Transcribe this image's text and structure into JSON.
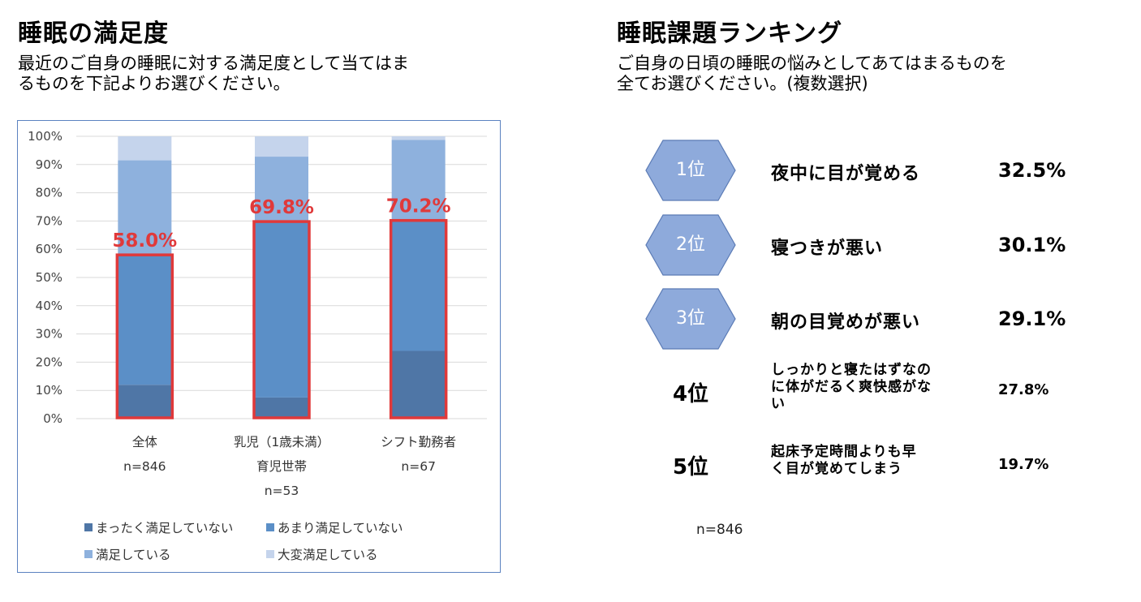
{
  "left": {
    "title": "睡眠の満足度",
    "subtitle": "最近のご自身の睡眠に対する満足度として当てはま\nるものを下記よりお選びください。"
  },
  "right": {
    "title": "睡眠課題ランキング",
    "subtitle": "ご自身の日頃の睡眠の悩みとしてあてはまるものを\n全てお選びください。(複数選択)",
    "n_label": "n=846",
    "ranks": [
      {
        "rank": "1位",
        "issue": "夜中に目が覚める",
        "pct": "32.5%",
        "highlight": true
      },
      {
        "rank": "2位",
        "issue": "寝つきが悪い",
        "pct": "30.1%",
        "highlight": true
      },
      {
        "rank": "3位",
        "issue": "朝の目覚めが悪い",
        "pct": "29.1%",
        "highlight": true
      },
      {
        "rank": "4位",
        "issue": "しっかりと寝たはずなの\nに体がだるく爽快感がな\nい",
        "pct": "27.8%",
        "highlight": false
      },
      {
        "rank": "5位",
        "issue": "起床予定時間よりも早\nく目が覚めてしまう",
        "pct": "19.7%",
        "highlight": false
      }
    ]
  },
  "chart_data": {
    "type": "bar",
    "stacked": true,
    "categories": [
      {
        "label": "全体",
        "n": "n=846"
      },
      {
        "label": "乳児（1歳未満）",
        "label2": "育児世帯",
        "n": "n=53"
      },
      {
        "label": "シフト勤務者",
        "n": "n=67"
      }
    ],
    "series": [
      {
        "name": "まったく満足していない",
        "color": "#4f76a6",
        "values": [
          12,
          7.5,
          24
        ]
      },
      {
        "name": "あまり満足していない",
        "color": "#5b8fc7",
        "values": [
          46,
          62.3,
          46.2
        ]
      },
      {
        "name": "満足している",
        "color": "#8eb1dd",
        "values": [
          33.5,
          23,
          28.5
        ]
      },
      {
        "name": "大変満足している",
        "color": "#c5d4ec",
        "values": [
          8.5,
          7.2,
          1.3
        ]
      }
    ],
    "highlight_labels": [
      "58.0%",
      "69.8%",
      "70.2%"
    ],
    "highlight_values": [
      58.0,
      69.8,
      70.2
    ],
    "highlight_color": "#e0393a",
    "y_ticks": [
      "0%",
      "10%",
      "20%",
      "30%",
      "40%",
      "50%",
      "60%",
      "70%",
      "80%",
      "90%",
      "100%"
    ],
    "ylim": [
      0,
      100
    ],
    "legend_position": "bottom",
    "grid": true
  },
  "colors": {
    "hex_fill": "#8eaadb",
    "hex_stroke": "#5b7bb5",
    "frame": "#5b82c0"
  }
}
